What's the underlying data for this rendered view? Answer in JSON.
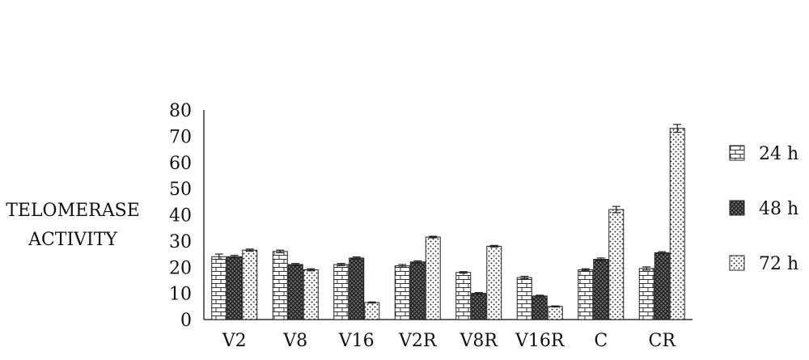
{
  "chart_data": {
    "type": "bar",
    "ylabel_lines": [
      "TELOMERASE",
      "ACTIVITY"
    ],
    "categories": [
      "V2",
      "V8",
      "V16",
      "V2R",
      "V8R",
      "V16R",
      "C",
      "CR"
    ],
    "y_ticks": [
      "0",
      "10",
      "20",
      "30",
      "40",
      "50",
      "60",
      "70",
      "80"
    ],
    "ylim": [
      0,
      80
    ],
    "grid": false,
    "legend_position": "right",
    "series": [
      {
        "name": "24 h",
        "pattern": "brick",
        "values": [
          24,
          26,
          21,
          20.5,
          18,
          16,
          19,
          19.5
        ],
        "errors": [
          1,
          0.5,
          0.4,
          0.5,
          0.3,
          0.5,
          0.4,
          0.6
        ]
      },
      {
        "name": "48 h",
        "pattern": "dark-hatch",
        "values": [
          24,
          21,
          23.5,
          22,
          10,
          9,
          23,
          25.5
        ],
        "errors": [
          0.5,
          0.4,
          0.4,
          0.4,
          0.3,
          0.3,
          0.5,
          0.4
        ]
      },
      {
        "name": "72 h",
        "pattern": "dots",
        "values": [
          26.5,
          19,
          6.5,
          31.5,
          28,
          5,
          42,
          73
        ],
        "errors": [
          0.4,
          0.4,
          0.2,
          0.3,
          0.3,
          0.2,
          1.2,
          1.5
        ]
      }
    ]
  }
}
